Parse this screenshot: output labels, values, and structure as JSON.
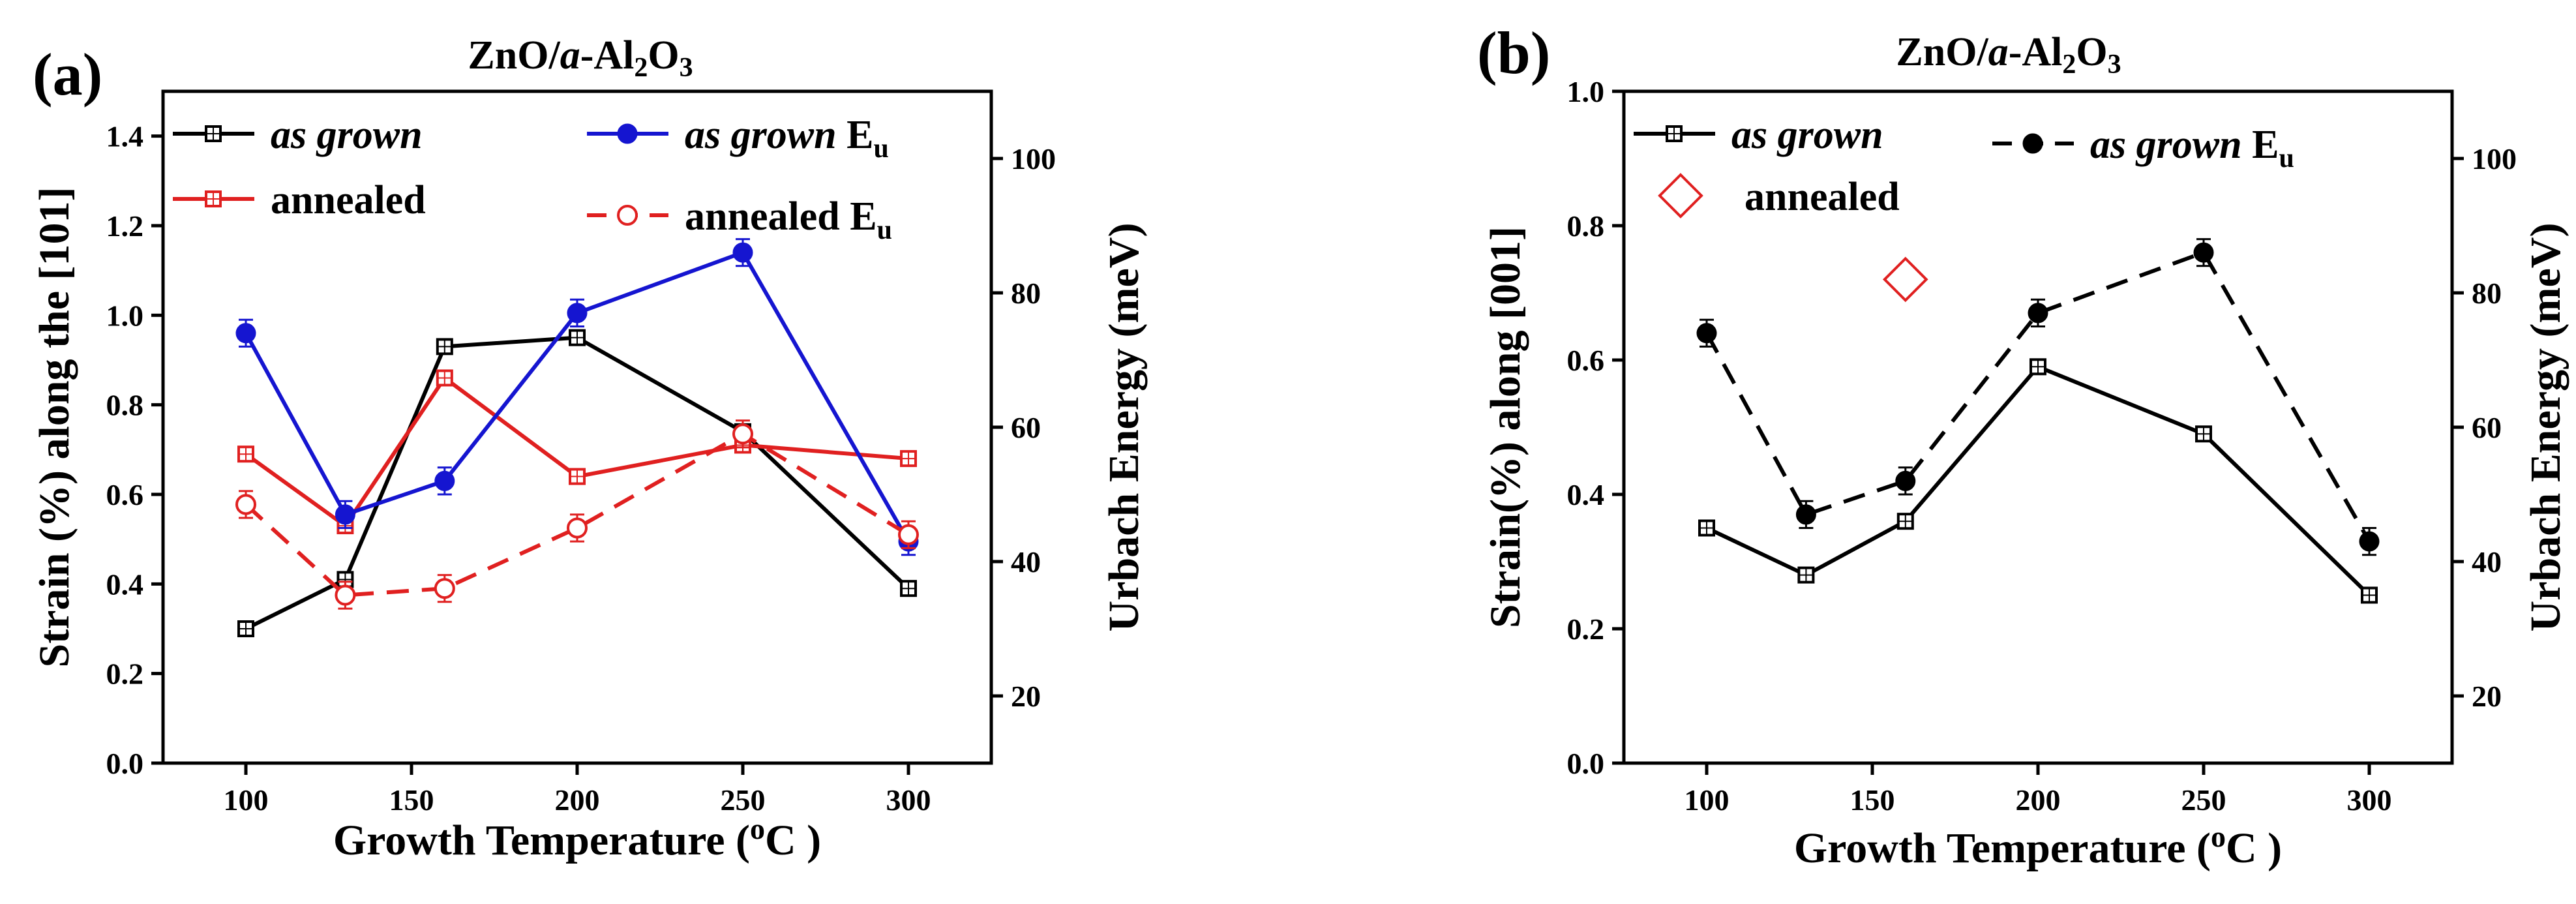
{
  "chart_data": [
    {
      "panel": "(a)",
      "title_parts": [
        "ZnO/",
        "a",
        "-Al",
        "2",
        "O",
        "3"
      ],
      "type": "line",
      "x_label_parts": [
        "Growth Temperature (",
        "o",
        "C )"
      ],
      "y_label_left": "Strain (%) along the [101]",
      "y_label_right": "Urbach Energy (meV)",
      "xlim": [
        75,
        325
      ],
      "xticks": [
        "100",
        "150",
        "200",
        "250",
        "300"
      ],
      "ylim_left": [
        0.0,
        1.5
      ],
      "yticks_left": [
        "0.0",
        "0.2",
        "0.4",
        "0.6",
        "0.8",
        "1.0",
        "1.2",
        "1.4"
      ],
      "ylim_right": [
        10,
        110
      ],
      "yticks_right": [
        "20",
        "40",
        "60",
        "80",
        "100"
      ],
      "series": [
        {
          "name": "as grown",
          "axis": "left",
          "color": "#000000",
          "marker": "square",
          "dashed": false,
          "x": [
            100,
            130,
            160,
            200,
            250,
            300
          ],
          "values": [
            0.3,
            0.41,
            0.93,
            0.95,
            0.74,
            0.39
          ]
        },
        {
          "name": "annealed",
          "axis": "left",
          "color": "#e02020",
          "marker": "square",
          "dashed": false,
          "x": [
            100,
            130,
            160,
            200,
            250,
            300
          ],
          "values": [
            0.69,
            0.53,
            0.86,
            0.64,
            0.71,
            0.68
          ]
        },
        {
          "name": "as grown E_u",
          "axis": "right",
          "color": "#1515d0",
          "marker": "filled-circle",
          "dashed": false,
          "x": [
            100,
            130,
            160,
            200,
            250,
            300
          ],
          "values": [
            74,
            47,
            52,
            77,
            86,
            43
          ],
          "errors": [
            2,
            2,
            2,
            2,
            2,
            2
          ]
        },
        {
          "name": "annealed E_u",
          "axis": "right",
          "color": "#e02020",
          "marker": "open-circle",
          "dashed": true,
          "x": [
            100,
            130,
            160,
            200,
            250,
            300
          ],
          "values": [
            48.5,
            35,
            36,
            45,
            59,
            44
          ],
          "errors": [
            2,
            2,
            2,
            2,
            2,
            2
          ]
        }
      ],
      "legend": [
        {
          "series": 0,
          "text": "as grown",
          "italic": true
        },
        {
          "series": 1,
          "text": "annealed",
          "italic": false
        },
        {
          "series": 2,
          "text": "as grown",
          "italic": true,
          "suffix": "E",
          "subscript": "u"
        },
        {
          "series": 3,
          "text": "annealed E",
          "italic": false,
          "subscript": "u"
        }
      ]
    },
    {
      "panel": "(b)",
      "title_parts": [
        "ZnO/",
        "a",
        "-Al",
        "2",
        "O",
        "3"
      ],
      "type": "line",
      "x_label_parts": [
        "Growth Temperature (",
        "o",
        "C )"
      ],
      "y_label_left": "Strain(%) along [001]",
      "y_label_right": "Urbach Energy (meV)",
      "xlim": [
        75,
        325
      ],
      "xticks": [
        "100",
        "150",
        "200",
        "250",
        "300"
      ],
      "ylim_left": [
        0.0,
        1.0
      ],
      "yticks_left": [
        "0.0",
        "0.2",
        "0.4",
        "0.6",
        "0.8",
        "1.0"
      ],
      "ylim_right": [
        10,
        110
      ],
      "yticks_right": [
        "20",
        "40",
        "60",
        "80",
        "100"
      ],
      "series": [
        {
          "name": "as grown",
          "axis": "left",
          "color": "#000000",
          "marker": "square",
          "dashed": false,
          "x": [
            100,
            130,
            160,
            200,
            250,
            300
          ],
          "values": [
            0.35,
            0.28,
            0.36,
            0.59,
            0.49,
            0.25
          ]
        },
        {
          "name": "as grown E_u",
          "axis": "right",
          "color": "#000000",
          "marker": "filled-circle",
          "dashed": true,
          "x": [
            100,
            130,
            160,
            200,
            250,
            300
          ],
          "values": [
            74,
            47,
            52,
            77,
            86,
            43
          ],
          "errors": [
            2,
            2,
            2,
            2,
            2,
            2
          ]
        },
        {
          "name": "annealed",
          "axis": "left",
          "color": "#e02020",
          "marker": "diamond",
          "dashed": false,
          "x": [
            160
          ],
          "values": [
            0.72
          ]
        }
      ],
      "legend": [
        {
          "series": 0,
          "text": "as grown",
          "italic": true
        },
        {
          "series": 1,
          "text": "as grown",
          "italic": true,
          "suffix": "E",
          "subscript": "u"
        },
        {
          "series": 2,
          "text": "annealed",
          "italic": false
        }
      ]
    }
  ]
}
